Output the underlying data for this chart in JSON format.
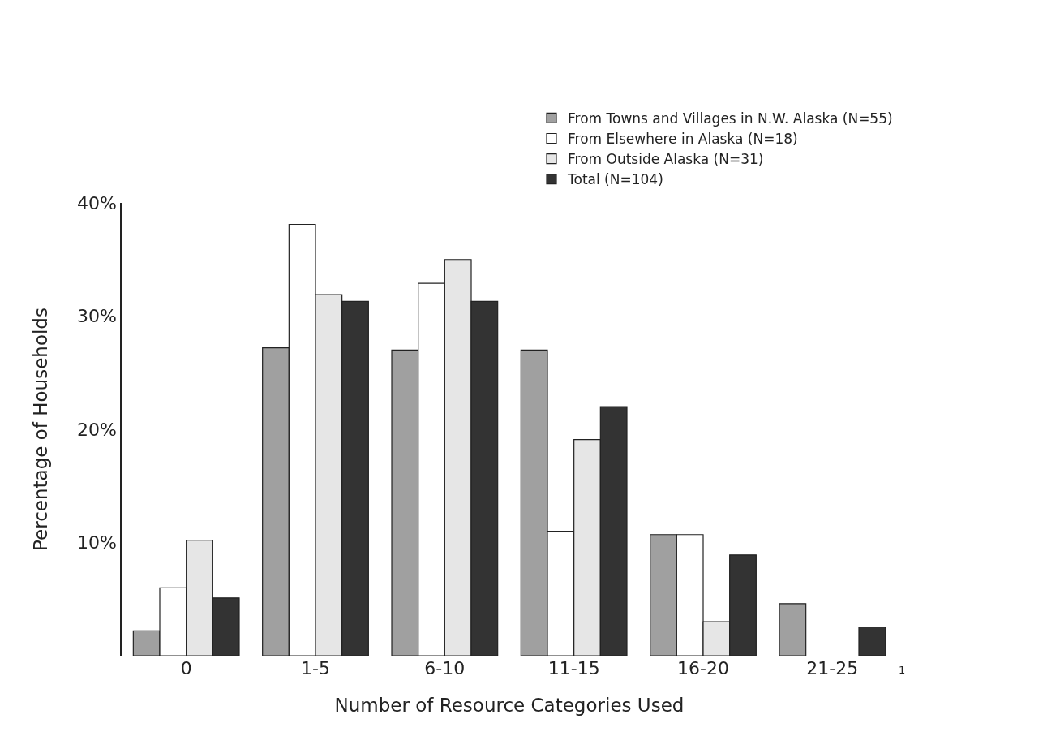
{
  "chart_data": {
    "type": "bar",
    "xlabel": "Number of Resource Categories Used",
    "ylabel": "Percentage of Households",
    "categories": [
      "0",
      "1-5",
      "6-10",
      "11-15",
      "16-20",
      "21-25"
    ],
    "series": [
      {
        "name": "From Towns and Villages in N.W. Alaska (N=55)",
        "color": "#a0a0a0",
        "values": [
          2.2,
          27.2,
          27.0,
          27.0,
          10.7,
          4.6
        ]
      },
      {
        "name": "From Elsewhere in Alaska (N=18)",
        "color": "#ffffff",
        "values": [
          6.0,
          38.1,
          32.9,
          11.0,
          10.7,
          null
        ]
      },
      {
        "name": "From Outside Alaska (N=31)",
        "color": "#e6e6e6",
        "values": [
          10.2,
          31.9,
          35.0,
          19.1,
          3.0,
          null
        ]
      },
      {
        "name": "Total (N=104)",
        "color": "#333333",
        "values": [
          5.1,
          31.3,
          31.3,
          22.0,
          8.9,
          2.5
        ]
      }
    ],
    "ylim": [
      0,
      40
    ],
    "yticks": [
      {
        "value": 10,
        "label": "10%"
      },
      {
        "value": 20,
        "label": "20%"
      },
      {
        "value": 30,
        "label": "30%"
      },
      {
        "value": 40,
        "label": "40%"
      }
    ],
    "annotations": [
      "1"
    ],
    "legend": "top right"
  }
}
